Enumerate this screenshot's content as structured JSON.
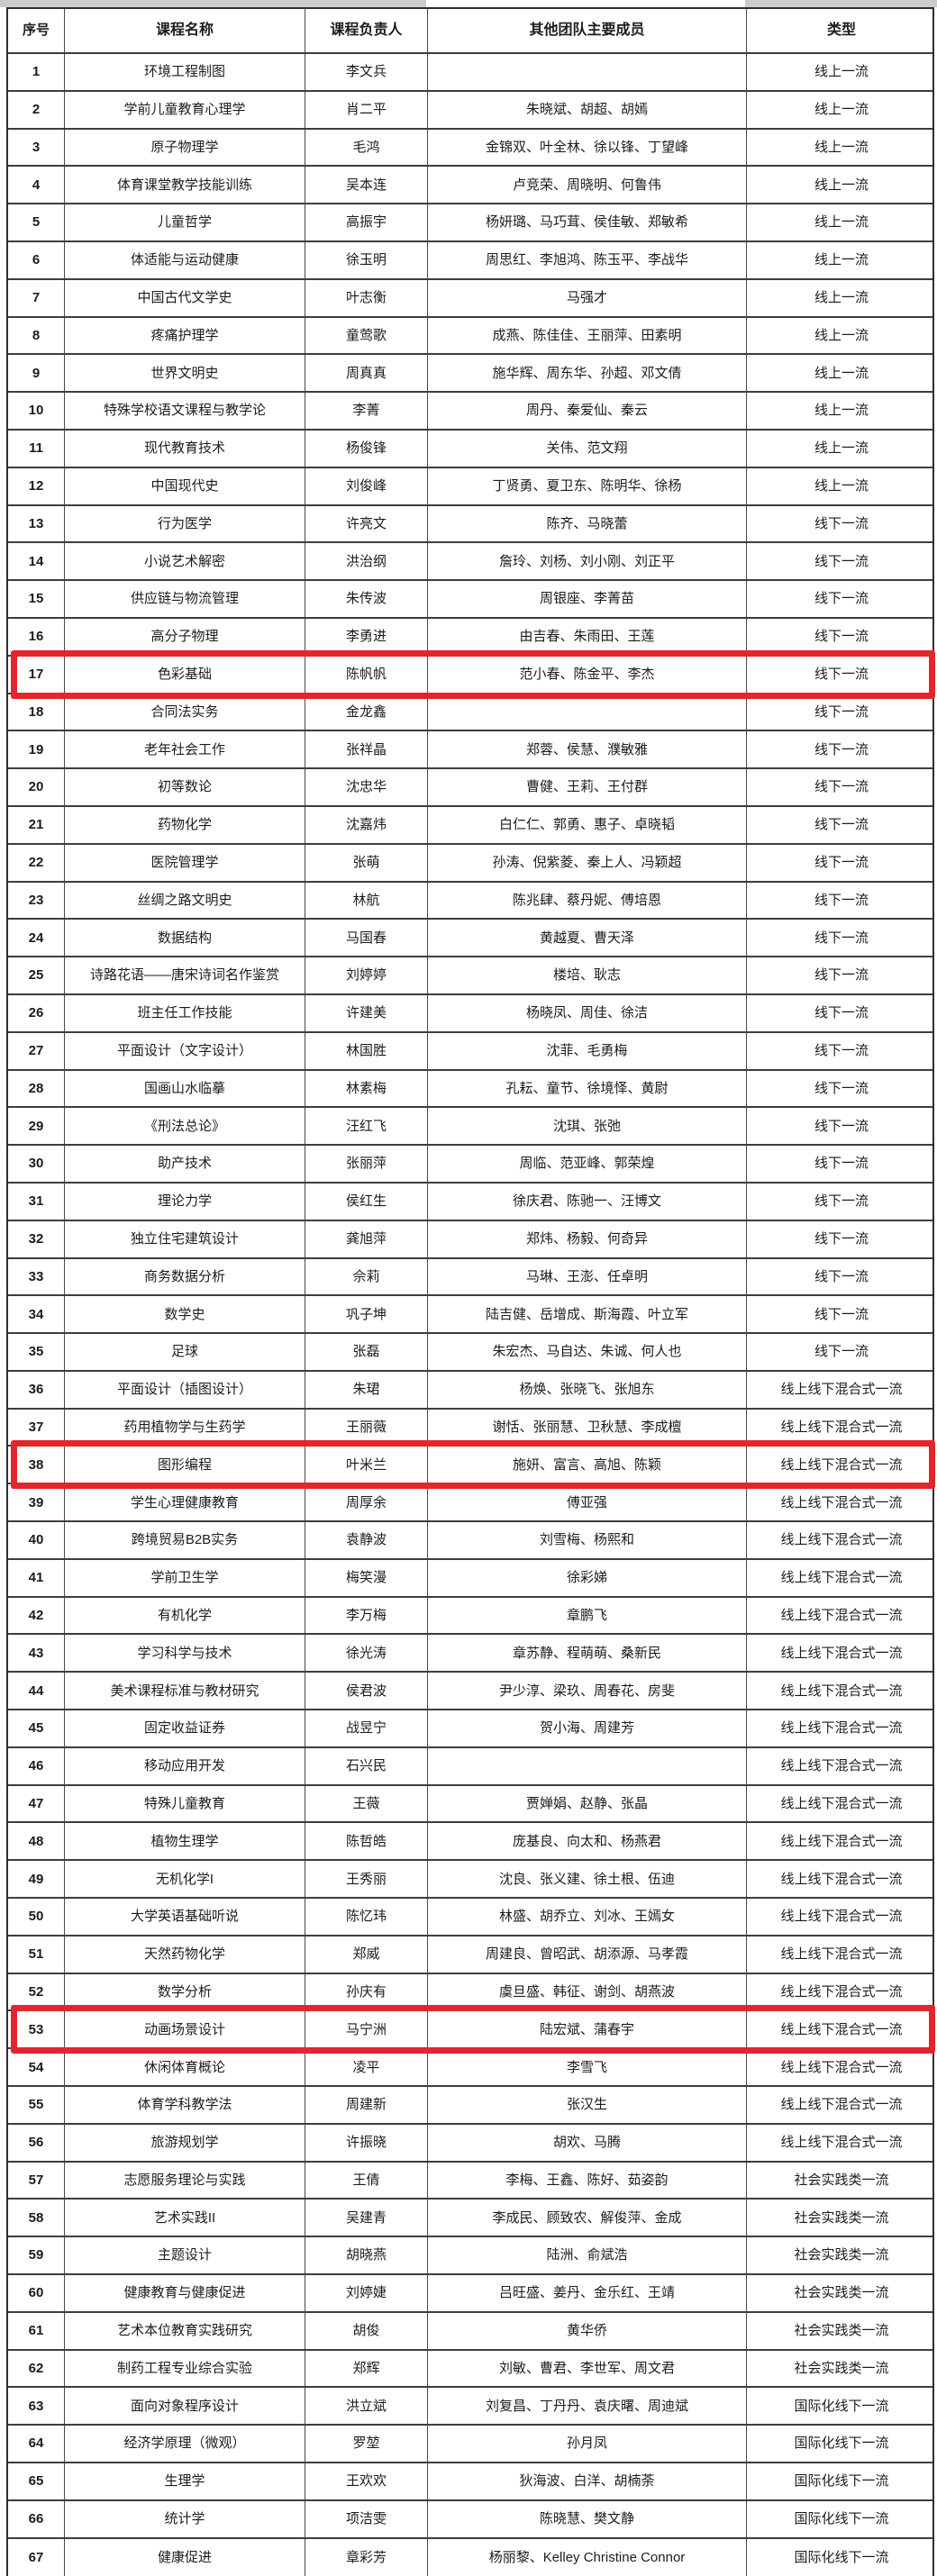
{
  "colors": {
    "highlight_border": "#e4252b",
    "grid_line": "#3d3d3d",
    "text": "#1c1c1c",
    "background": "#ffffff"
  },
  "table": {
    "columns": [
      "序号",
      "课程名称",
      "课程负责人",
      "其他团队主要成员",
      "类型"
    ],
    "rows": [
      {
        "no": "1",
        "course": "环境工程制图",
        "leader": "李文兵",
        "members": "",
        "type": "线上一流",
        "highlighted": false
      },
      {
        "no": "2",
        "course": "学前儿童教育心理学",
        "leader": "肖二平",
        "members": "朱晓斌、胡超、胡嫣",
        "type": "线上一流",
        "highlighted": false
      },
      {
        "no": "3",
        "course": "原子物理学",
        "leader": "毛鸿",
        "members": "金锦双、叶全林、徐以锋、丁望峰",
        "type": "线上一流",
        "highlighted": false
      },
      {
        "no": "4",
        "course": "体育课堂教学技能训练",
        "leader": "吴本连",
        "members": "卢竞荣、周晓明、何鲁伟",
        "type": "线上一流",
        "highlighted": false
      },
      {
        "no": "5",
        "course": "儿童哲学",
        "leader": "高振宇",
        "members": "杨妍璐、马巧茸、侯佳敏、郑敏希",
        "type": "线上一流",
        "highlighted": false
      },
      {
        "no": "6",
        "course": "体适能与运动健康",
        "leader": "徐玉明",
        "members": "周思红、李旭鸿、陈玉平、李战华",
        "type": "线上一流",
        "highlighted": false
      },
      {
        "no": "7",
        "course": "中国古代文学史",
        "leader": "叶志衡",
        "members": "马强才",
        "type": "线上一流",
        "highlighted": false
      },
      {
        "no": "8",
        "course": "疼痛护理学",
        "leader": "童莺歌",
        "members": "成燕、陈佳佳、王丽萍、田素明",
        "type": "线上一流",
        "highlighted": false
      },
      {
        "no": "9",
        "course": "世界文明史",
        "leader": "周真真",
        "members": "施华辉、周东华、孙超、邓文倩",
        "type": "线上一流",
        "highlighted": false
      },
      {
        "no": "10",
        "course": "特殊学校语文课程与教学论",
        "leader": "李菁",
        "members": "周丹、秦爱仙、秦云",
        "type": "线上一流",
        "highlighted": false
      },
      {
        "no": "11",
        "course": "现代教育技术",
        "leader": "杨俊锋",
        "members": "关伟、范文翔",
        "type": "线上一流",
        "highlighted": false
      },
      {
        "no": "12",
        "course": "中国现代史",
        "leader": "刘俊峰",
        "members": "丁贤勇、夏卫东、陈明华、徐杨",
        "type": "线上一流",
        "highlighted": false
      },
      {
        "no": "13",
        "course": "行为医学",
        "leader": "许亮文",
        "members": "陈齐、马晓蕾",
        "type": "线下一流",
        "highlighted": false
      },
      {
        "no": "14",
        "course": "小说艺术解密",
        "leader": "洪治纲",
        "members": "詹玲、刘杨、刘小刚、刘正平",
        "type": "线下一流",
        "highlighted": false
      },
      {
        "no": "15",
        "course": "供应链与物流管理",
        "leader": "朱传波",
        "members": "周银座、李菁苗",
        "type": "线下一流",
        "highlighted": false
      },
      {
        "no": "16",
        "course": "高分子物理",
        "leader": "李勇进",
        "members": "由吉春、朱雨田、王莲",
        "type": "线下一流",
        "highlighted": false
      },
      {
        "no": "17",
        "course": "色彩基础",
        "leader": "陈帆帆",
        "members": "范小春、陈金平、李杰",
        "type": "线下一流",
        "highlighted": true
      },
      {
        "no": "18",
        "course": "合同法实务",
        "leader": "金龙鑫",
        "members": "",
        "type": "线下一流",
        "highlighted": false
      },
      {
        "no": "19",
        "course": "老年社会工作",
        "leader": "张祥晶",
        "members": "郑蓉、侯慧、濮敏雅",
        "type": "线下一流",
        "highlighted": false
      },
      {
        "no": "20",
        "course": "初等数论",
        "leader": "沈忠华",
        "members": "曹健、王莉、王付群",
        "type": "线下一流",
        "highlighted": false
      },
      {
        "no": "21",
        "course": "药物化学",
        "leader": "沈嘉炜",
        "members": "白仁仁、郭勇、惠子、卓晓韬",
        "type": "线下一流",
        "highlighted": false
      },
      {
        "no": "22",
        "course": "医院管理学",
        "leader": "张萌",
        "members": "孙涛、倪紫菱、秦上人、冯颖超",
        "type": "线下一流",
        "highlighted": false
      },
      {
        "no": "23",
        "course": "丝绸之路文明史",
        "leader": "林航",
        "members": "陈兆肆、蔡丹妮、傅培恩",
        "type": "线下一流",
        "highlighted": false
      },
      {
        "no": "24",
        "course": "数据结构",
        "leader": "马国春",
        "members": "黄越夏、曹天泽",
        "type": "线下一流",
        "highlighted": false
      },
      {
        "no": "25",
        "course": "诗路花语——唐宋诗词名作鉴赏",
        "leader": "刘婷婷",
        "members": "楼培、耿志",
        "type": "线下一流",
        "highlighted": false
      },
      {
        "no": "26",
        "course": "班主任工作技能",
        "leader": "许建美",
        "members": "杨晓凤、周佳、徐洁",
        "type": "线下一流",
        "highlighted": false
      },
      {
        "no": "27",
        "course": "平面设计（文字设计）",
        "leader": "林国胜",
        "members": "沈菲、毛勇梅",
        "type": "线下一流",
        "highlighted": false
      },
      {
        "no": "28",
        "course": "国画山水临摹",
        "leader": "林素梅",
        "members": "孔耘、童节、徐境怿、黄尉",
        "type": "线下一流",
        "highlighted": false
      },
      {
        "no": "29",
        "course": "《刑法总论》",
        "leader": "汪红飞",
        "members": "沈琪、张弛",
        "type": "线下一流",
        "highlighted": false
      },
      {
        "no": "30",
        "course": "助产技术",
        "leader": "张丽萍",
        "members": "周临、范亚峰、郭荣煌",
        "type": "线下一流",
        "highlighted": false
      },
      {
        "no": "31",
        "course": "理论力学",
        "leader": "侯红生",
        "members": "徐庆君、陈驰一、汪博文",
        "type": "线下一流",
        "highlighted": false
      },
      {
        "no": "32",
        "course": "独立住宅建筑设计",
        "leader": "龚旭萍",
        "members": "郑炜、杨毅、何奇异",
        "type": "线下一流",
        "highlighted": false
      },
      {
        "no": "33",
        "course": "商务数据分析",
        "leader": "佘莉",
        "members": "马琳、王澎、任卓明",
        "type": "线下一流",
        "highlighted": false
      },
      {
        "no": "34",
        "course": "数学史",
        "leader": "巩子坤",
        "members": "陆吉健、岳增成、斯海霞、叶立军",
        "type": "线下一流",
        "highlighted": false
      },
      {
        "no": "35",
        "course": "足球",
        "leader": "张磊",
        "members": "朱宏杰、马自达、朱诚、何人也",
        "type": "线下一流",
        "highlighted": false
      },
      {
        "no": "36",
        "course": "平面设计（插图设计）",
        "leader": "朱珺",
        "members": "杨焕、张晓飞、张旭东",
        "type": "线上线下混合式一流",
        "highlighted": false
      },
      {
        "no": "37",
        "course": "药用植物学与生药学",
        "leader": "王丽薇",
        "members": "谢恬、张丽慧、卫秋慧、李成檀",
        "type": "线上线下混合式一流",
        "highlighted": false
      },
      {
        "no": "38",
        "course": "图形编程",
        "leader": "叶米兰",
        "members": "施妍、富言、高旭、陈颖",
        "type": "线上线下混合式一流",
        "highlighted": true
      },
      {
        "no": "39",
        "course": "学生心理健康教育",
        "leader": "周厚余",
        "members": "傅亚强",
        "type": "线上线下混合式一流",
        "highlighted": false
      },
      {
        "no": "40",
        "course": "跨境贸易B2B实务",
        "leader": "袁静波",
        "members": "刘雪梅、杨熙和",
        "type": "线上线下混合式一流",
        "highlighted": false
      },
      {
        "no": "41",
        "course": "学前卫生学",
        "leader": "梅笑漫",
        "members": "徐彩娣",
        "type": "线上线下混合式一流",
        "highlighted": false
      },
      {
        "no": "42",
        "course": "有机化学",
        "leader": "李万梅",
        "members": "章鹏飞",
        "type": "线上线下混合式一流",
        "highlighted": false
      },
      {
        "no": "43",
        "course": "学习科学与技术",
        "leader": "徐光涛",
        "members": "章苏静、程萌萌、桑新民",
        "type": "线上线下混合式一流",
        "highlighted": false
      },
      {
        "no": "44",
        "course": "美术课程标准与教材研究",
        "leader": "侯君波",
        "members": "尹少淳、梁玖、周春花、房斐",
        "type": "线上线下混合式一流",
        "highlighted": false
      },
      {
        "no": "45",
        "course": "固定收益证券",
        "leader": "战昱宁",
        "members": "贺小海、周建芳",
        "type": "线上线下混合式一流",
        "highlighted": false
      },
      {
        "no": "46",
        "course": "移动应用开发",
        "leader": "石兴民",
        "members": "",
        "type": "线上线下混合式一流",
        "highlighted": false
      },
      {
        "no": "47",
        "course": "特殊儿童教育",
        "leader": "王薇",
        "members": "贾婵娟、赵静、张晶",
        "type": "线上线下混合式一流",
        "highlighted": false
      },
      {
        "no": "48",
        "course": "植物生理学",
        "leader": "陈哲皓",
        "members": "庞基良、向太和、杨燕君",
        "type": "线上线下混合式一流",
        "highlighted": false
      },
      {
        "no": "49",
        "course": "无机化学I",
        "leader": "王秀丽",
        "members": "沈良、张义建、徐土根、伍迪",
        "type": "线上线下混合式一流",
        "highlighted": false
      },
      {
        "no": "50",
        "course": "大学英语基础听说",
        "leader": "陈忆玮",
        "members": "林盛、胡乔立、刘冰、王嫣女",
        "type": "线上线下混合式一流",
        "highlighted": false
      },
      {
        "no": "51",
        "course": "天然药物化学",
        "leader": "郑威",
        "members": "周建良、曾昭武、胡添源、马孝霞",
        "type": "线上线下混合式一流",
        "highlighted": false
      },
      {
        "no": "52",
        "course": "数学分析",
        "leader": "孙庆有",
        "members": "虞旦盛、韩征、谢剑、胡燕波",
        "type": "线上线下混合式一流",
        "highlighted": false
      },
      {
        "no": "53",
        "course": "动画场景设计",
        "leader": "马宁洲",
        "members": "陆宏斌、蒲春宇",
        "type": "线上线下混合式一流",
        "highlighted": true
      },
      {
        "no": "54",
        "course": "休闲体育概论",
        "leader": "凌平",
        "members": "李雪飞",
        "type": "线上线下混合式一流",
        "highlighted": false
      },
      {
        "no": "55",
        "course": "体育学科教学法",
        "leader": "周建新",
        "members": "张汉生",
        "type": "线上线下混合式一流",
        "highlighted": false
      },
      {
        "no": "56",
        "course": "旅游规划学",
        "leader": "许振晓",
        "members": "胡欢、马腾",
        "type": "线上线下混合式一流",
        "highlighted": false
      },
      {
        "no": "57",
        "course": "志愿服务理论与实践",
        "leader": "王倩",
        "members": "李梅、王鑫、陈好、茹姿韵",
        "type": "社会实践类一流",
        "highlighted": false
      },
      {
        "no": "58",
        "course": "艺术实践II",
        "leader": "吴建青",
        "members": "李成民、顾致农、解俊萍、金成",
        "type": "社会实践类一流",
        "highlighted": false
      },
      {
        "no": "59",
        "course": "主题设计",
        "leader": "胡晓燕",
        "members": "陆洲、俞斌浩",
        "type": "社会实践类一流",
        "highlighted": false
      },
      {
        "no": "60",
        "course": "健康教育与健康促进",
        "leader": "刘婷婕",
        "members": "吕旺盛、姜丹、金乐红、王靖",
        "type": "社会实践类一流",
        "highlighted": false
      },
      {
        "no": "61",
        "course": "艺术本位教育实践研究",
        "leader": "胡俊",
        "members": "黄华侨",
        "type": "社会实践类一流",
        "highlighted": false
      },
      {
        "no": "62",
        "course": "制药工程专业综合实验",
        "leader": "郑辉",
        "members": "刘敏、曹君、李世军、周文君",
        "type": "社会实践类一流",
        "highlighted": false
      },
      {
        "no": "63",
        "course": "面向对象程序设计",
        "leader": "洪立斌",
        "members": "刘复昌、丁丹丹、袁庆曙、周迪斌",
        "type": "国际化线下一流",
        "highlighted": false
      },
      {
        "no": "64",
        "course": "经济学原理（微观）",
        "leader": "罗堃",
        "members": "孙月凤",
        "type": "国际化线下一流",
        "highlighted": false
      },
      {
        "no": "65",
        "course": "生理学",
        "leader": "王欢欢",
        "members": "狄海波、白洋、胡楠荼",
        "type": "国际化线下一流",
        "highlighted": false
      },
      {
        "no": "66",
        "course": "统计学",
        "leader": "项洁雯",
        "members": "陈晓慧、樊文静",
        "type": "国际化线下一流",
        "highlighted": false
      },
      {
        "no": "67",
        "course": "健康促进",
        "leader": "章彩芳",
        "members": "杨丽黎、Kelley Christine Connor",
        "type": "国际化线下一流",
        "highlighted": false
      }
    ]
  }
}
